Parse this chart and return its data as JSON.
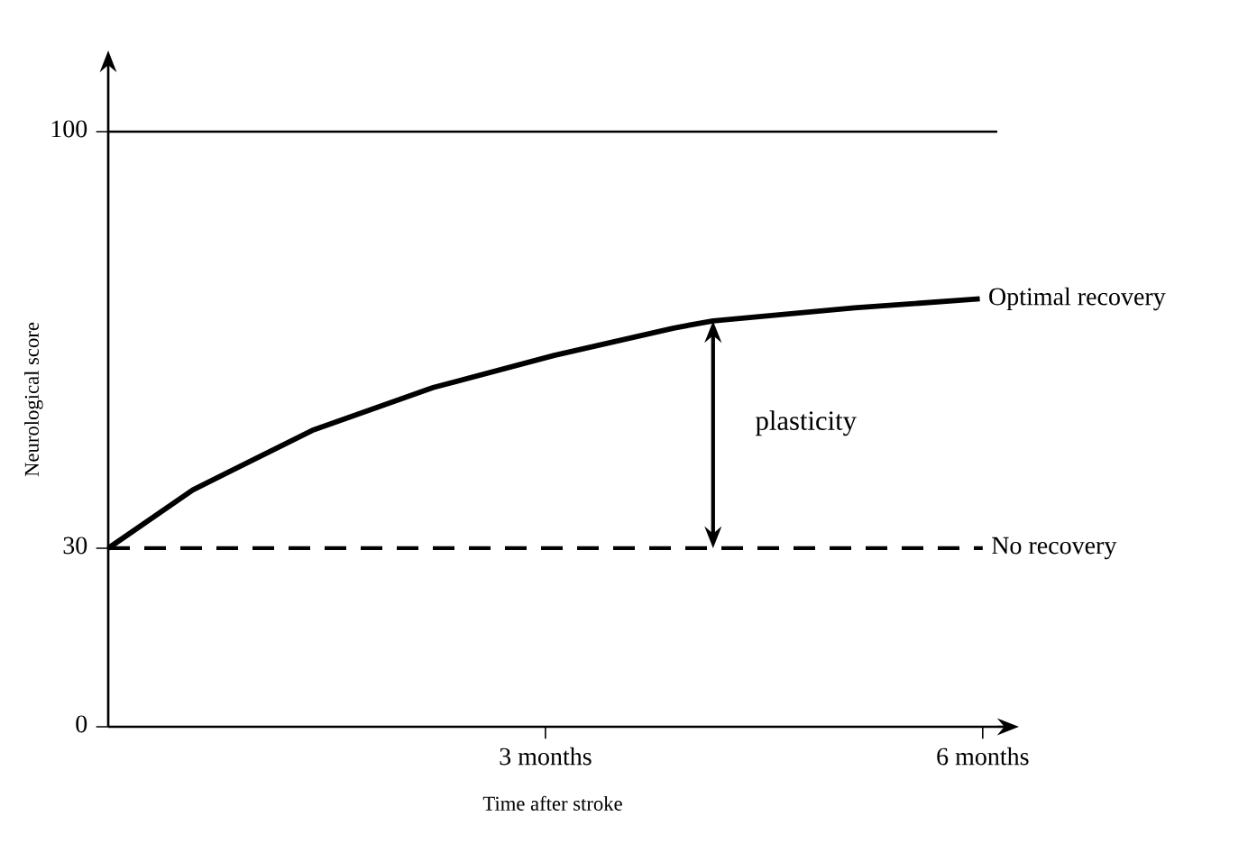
{
  "chart_data": {
    "type": "line",
    "xlabel": "Time after stroke",
    "ylabel": "Neurological score",
    "xlim": [
      0,
      6.1
    ],
    "ylim": [
      0,
      110
    ],
    "xticks": [
      {
        "value": 3,
        "label": "3 months"
      },
      {
        "value": 6,
        "label": "6 months"
      }
    ],
    "yticks": [
      0,
      30,
      100
    ],
    "legend": false,
    "grid": false,
    "ref_lines": [
      {
        "axis": "y",
        "value": 100,
        "color": "#000000",
        "line_style": "solid"
      }
    ],
    "annotations": [
      "plasticity"
    ],
    "series": [
      {
        "name": "Optimal recovery",
        "color": "#000000",
        "line_style": "solid",
        "x": [
          0,
          0.58,
          1.4,
          2.23,
          3.06,
          3.88,
          4.15,
          5.12,
          5.98
        ],
        "values": [
          30,
          39.8,
          49.8,
          57.0,
          62.4,
          67.0,
          68.2,
          70.4,
          71.9
        ]
      },
      {
        "name": "No recovery",
        "color": "#000000",
        "line_style": "dashed",
        "x": [
          0,
          6
        ],
        "values": [
          30,
          30
        ]
      }
    ]
  }
}
